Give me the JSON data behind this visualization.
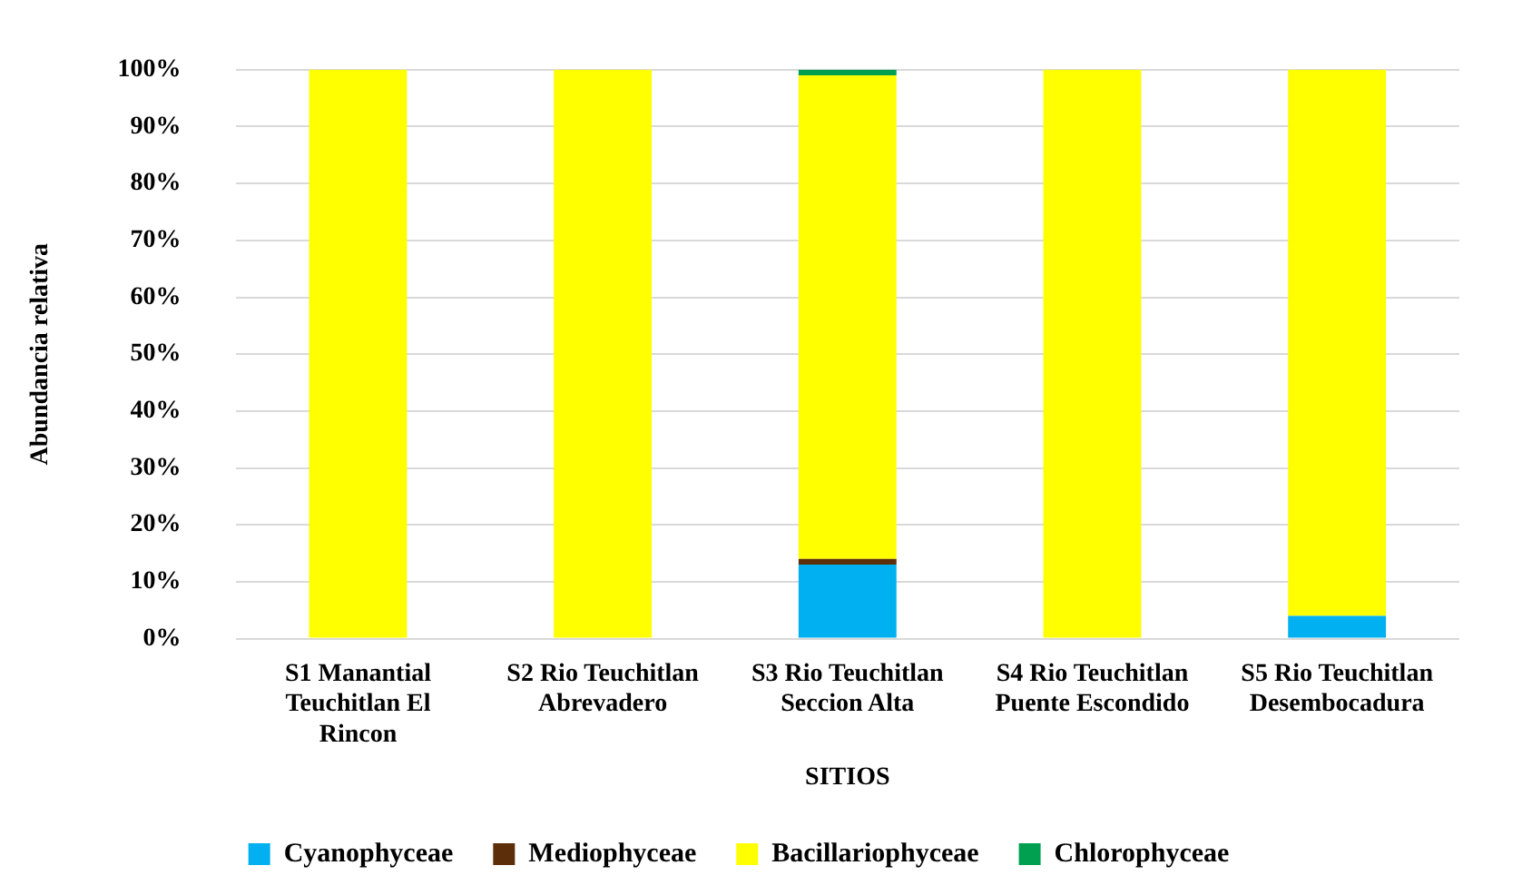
{
  "chart_data": {
    "type": "bar",
    "stacked": true,
    "xlabel": "SITIOS",
    "ylabel": "Abundancia relativa",
    "categories": [
      "S1 Manantial Teuchitlan El Rincon",
      "S2 Rio Teuchitlan Abrevadero",
      "S3 Rio Teuchitlan Seccion Alta",
      "S4 Rio Teuchitlan Puente Escondido",
      "S5 Rio Teuchitlan Desembocadura"
    ],
    "series": [
      {
        "name": "Cyanophyceae",
        "color": "#00b0f0",
        "values": [
          0,
          0,
          13,
          0,
          4
        ]
      },
      {
        "name": "Mediophyceae",
        "color": "#5c2e0a",
        "values": [
          0,
          0,
          1,
          0,
          0
        ]
      },
      {
        "name": "Bacillariophyceae",
        "color": "#ffff00",
        "values": [
          100,
          100,
          85,
          100,
          96
        ]
      },
      {
        "name": "Chlorophyceae",
        "color": "#00a050",
        "values": [
          0,
          0,
          1,
          0,
          0
        ]
      }
    ],
    "ylim": [
      0,
      100
    ],
    "yticks": [
      {
        "value": 0,
        "label": "0%"
      },
      {
        "value": 10,
        "label": "10%"
      },
      {
        "value": 20,
        "label": "20%"
      },
      {
        "value": 30,
        "label": "30%"
      },
      {
        "value": 40,
        "label": "40%"
      },
      {
        "value": 50,
        "label": "50%"
      },
      {
        "value": 60,
        "label": "60%"
      },
      {
        "value": 70,
        "label": "70%"
      },
      {
        "value": 80,
        "label": "80%"
      },
      {
        "value": 90,
        "label": "90%"
      },
      {
        "value": 100,
        "label": "100%"
      }
    ],
    "grid": "y",
    "legend": "bottom"
  }
}
